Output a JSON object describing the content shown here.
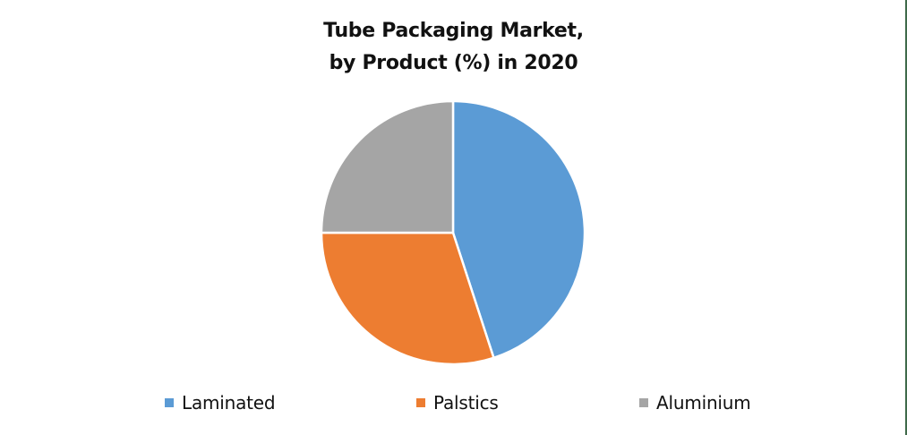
{
  "chart_data": {
    "type": "pie",
    "title": "Tube Packaging Market, by Product (%) in 2020",
    "title_lines": [
      "Tube Packaging Market,",
      "by Product (%) in 2020"
    ],
    "categories": [
      "Laminated",
      "Palstics",
      "Aluminium"
    ],
    "values": [
      45,
      30,
      25
    ],
    "unit": "%",
    "colors": [
      "#5b9bd5",
      "#ed7d31",
      "#a5a5a5"
    ],
    "start_angle_deg": 0,
    "direction": "clockwise",
    "data_labels": false,
    "legend_position": "bottom",
    "xlabel": "",
    "ylabel": ""
  },
  "legend": [
    {
      "label": "Laminated",
      "color": "#5b9bd5"
    },
    {
      "label": "Palstics",
      "color": "#ed7d31"
    },
    {
      "label": "Aluminium",
      "color": "#a5a5a5"
    }
  ]
}
